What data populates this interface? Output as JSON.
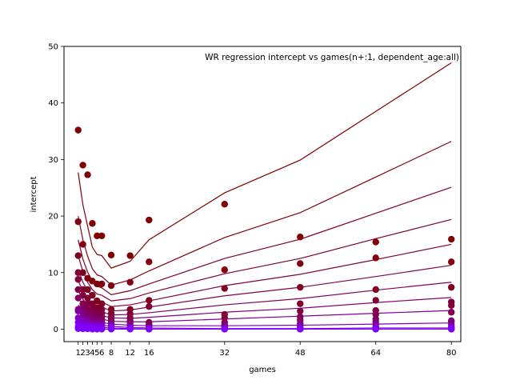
{
  "chart_data": {
    "type": "scatter",
    "title": "WR regression intercept vs games(n+:1, dependent_age:all)",
    "xlabel": "games",
    "ylabel": "intercept",
    "xlim": [
      -2,
      82
    ],
    "ylim": [
      -2.2,
      50
    ],
    "x_ticks": [
      1,
      2,
      3,
      4,
      5,
      6,
      8,
      12,
      16,
      32,
      48,
      64,
      80
    ],
    "x_tick_labels": [
      "1",
      "2",
      "3",
      "4",
      "5",
      "6",
      "8",
      "12",
      "16",
      "32",
      "48",
      "64",
      "80"
    ],
    "y_ticks": [
      0,
      10,
      20,
      30,
      40,
      50
    ],
    "y_tick_labels": [
      "0",
      "10",
      "20",
      "30",
      "40",
      "50"
    ],
    "grid": false,
    "x": [
      1,
      2,
      3,
      4,
      5,
      6,
      8,
      12,
      16,
      32,
      48,
      64,
      80
    ],
    "fit_x": [
      1,
      2,
      3,
      4,
      5,
      6,
      8,
      12,
      16,
      32,
      48,
      64,
      80
    ],
    "series": [
      {
        "color": "#800000",
        "values": [
          35.2,
          29.0,
          27.3,
          18.7,
          16.5,
          16.5,
          13.1,
          13.0,
          19.3,
          22.1,
          16.3,
          15.4,
          15.9
        ],
        "fit": [
          27.7,
          22.0,
          18.2,
          14.5,
          13.2,
          13.0,
          10.8,
          12.0,
          15.8,
          24.1,
          29.9,
          38.5,
          47.1
        ]
      },
      {
        "color": "#800010",
        "values": [
          19.0,
          15.0,
          9.0,
          8.5,
          8.0,
          8.0,
          7.7,
          8.3,
          11.9,
          10.5,
          11.6,
          12.6,
          11.9
        ],
        "fit": [
          20.0,
          15.8,
          12.9,
          10.7,
          9.6,
          9.3,
          7.8,
          8.7,
          10.3,
          16.2,
          20.6,
          26.9,
          33.2
        ]
      },
      {
        "color": "#800020",
        "values": [
          13.0,
          10.0,
          7.0,
          6.0,
          5.0,
          4.5,
          3.5,
          3.5,
          5.1,
          7.2,
          7.4,
          7.0,
          7.4
        ],
        "fit": [
          15.8,
          12.4,
          10.1,
          8.5,
          7.6,
          7.3,
          6.1,
          6.8,
          8.0,
          12.5,
          15.9,
          20.5,
          25.1
        ]
      },
      {
        "color": "#800030",
        "values": [
          10.0,
          7.0,
          5.5,
          4.5,
          3.8,
          3.5,
          2.8,
          2.7,
          4.0,
          2.6,
          4.5,
          5.1,
          4.8
        ],
        "fit": [
          13.0,
          10.2,
          8.3,
          7.0,
          6.2,
          6.0,
          5.0,
          5.4,
          6.4,
          9.8,
          12.5,
          16.0,
          19.4
        ]
      },
      {
        "color": "#800040",
        "values": [
          8.8,
          6.0,
          4.5,
          3.5,
          3.0,
          2.8,
          2.2,
          2.0,
          1.2,
          2.0,
          3.2,
          3.3,
          4.2
        ],
        "fit": [
          10.6,
          8.3,
          6.8,
          5.7,
          5.0,
          4.8,
          4.0,
          4.3,
          5.0,
          7.7,
          9.7,
          12.3,
          15.0
        ]
      },
      {
        "color": "#800050",
        "values": [
          7.0,
          4.5,
          3.5,
          2.8,
          2.3,
          2.2,
          1.8,
          1.5,
          0.8,
          1.2,
          2.2,
          2.6,
          3.0
        ],
        "fit": [
          8.6,
          6.7,
          5.5,
          4.6,
          4.1,
          3.9,
          3.2,
          3.4,
          3.9,
          5.9,
          7.4,
          9.3,
          11.3
        ]
      },
      {
        "color": "#800060",
        "values": [
          5.5,
          3.8,
          2.8,
          2.2,
          1.8,
          1.7,
          1.4,
          1.2,
          0.5,
          0.8,
          1.6,
          1.8,
          1.5
        ],
        "fit": [
          6.8,
          5.3,
          4.4,
          3.7,
          3.3,
          3.1,
          2.5,
          2.6,
          2.9,
          4.3,
          5.4,
          6.9,
          8.3
        ]
      },
      {
        "color": "#80007a",
        "values": [
          3.5,
          2.8,
          2.1,
          1.7,
          1.3,
          1.2,
          1.0,
          0.8,
          0.3,
          0.5,
          1.0,
          1.3,
          1.3
        ],
        "fit": [
          5.5,
          4.3,
          3.5,
          2.9,
          2.6,
          2.4,
          2.0,
          1.9,
          2.1,
          3.0,
          3.7,
          4.7,
          5.6
        ]
      },
      {
        "color": "#800099",
        "values": [
          3.2,
          2.0,
          1.5,
          1.2,
          1.0,
          0.9,
          0.7,
          0.5,
          0.2,
          0.3,
          0.6,
          0.8,
          0.8
        ],
        "fit": [
          4.3,
          3.3,
          2.7,
          2.2,
          1.9,
          1.8,
          1.4,
          1.3,
          1.3,
          1.8,
          2.3,
          2.8,
          3.3
        ]
      },
      {
        "color": "#8000bb",
        "values": [
          2.0,
          1.3,
          1.0,
          0.8,
          0.6,
          0.6,
          0.5,
          0.3,
          0.1,
          0.2,
          0.3,
          0.4,
          0.4
        ],
        "fit": [
          3.2,
          2.4,
          1.9,
          1.5,
          1.3,
          1.2,
          0.9,
          0.7,
          0.6,
          0.6,
          0.7,
          0.9,
          1.1
        ]
      },
      {
        "color": "#8000dd",
        "values": [
          1.2,
          0.8,
          0.6,
          0.5,
          0.4,
          0.3,
          0.3,
          0.2,
          0.05,
          0.1,
          0.1,
          0.2,
          0.2
        ],
        "fit": [
          2.2,
          1.6,
          1.2,
          1.0,
          0.8,
          0.7,
          0.5,
          0.3,
          0.2,
          0.1,
          0.1,
          0.2,
          0.2
        ]
      },
      {
        "color": "#8000f0",
        "values": [
          0.5,
          0.3,
          0.2,
          0.2,
          0.1,
          0.1,
          0.1,
          0.05,
          0.0,
          0.0,
          0.0,
          0.0,
          0.0
        ],
        "fit": [
          1.2,
          0.8,
          0.6,
          0.5,
          0.4,
          0.3,
          0.2,
          0.1,
          0.0,
          0.0,
          0.0,
          0.0,
          0.0
        ]
      },
      {
        "color": "#8000ff",
        "values": [
          0.1,
          0.05,
          0.05,
          0.0,
          0.0,
          0.0,
          0.0,
          0.0,
          0.0,
          0.0,
          0.0,
          0.0,
          0.0
        ],
        "fit": [
          0.3,
          0.2,
          0.1,
          0.1,
          0.1,
          0.0,
          0.0,
          0.0,
          0.0,
          0.0,
          0.0,
          0.0,
          0.0
        ]
      }
    ]
  }
}
